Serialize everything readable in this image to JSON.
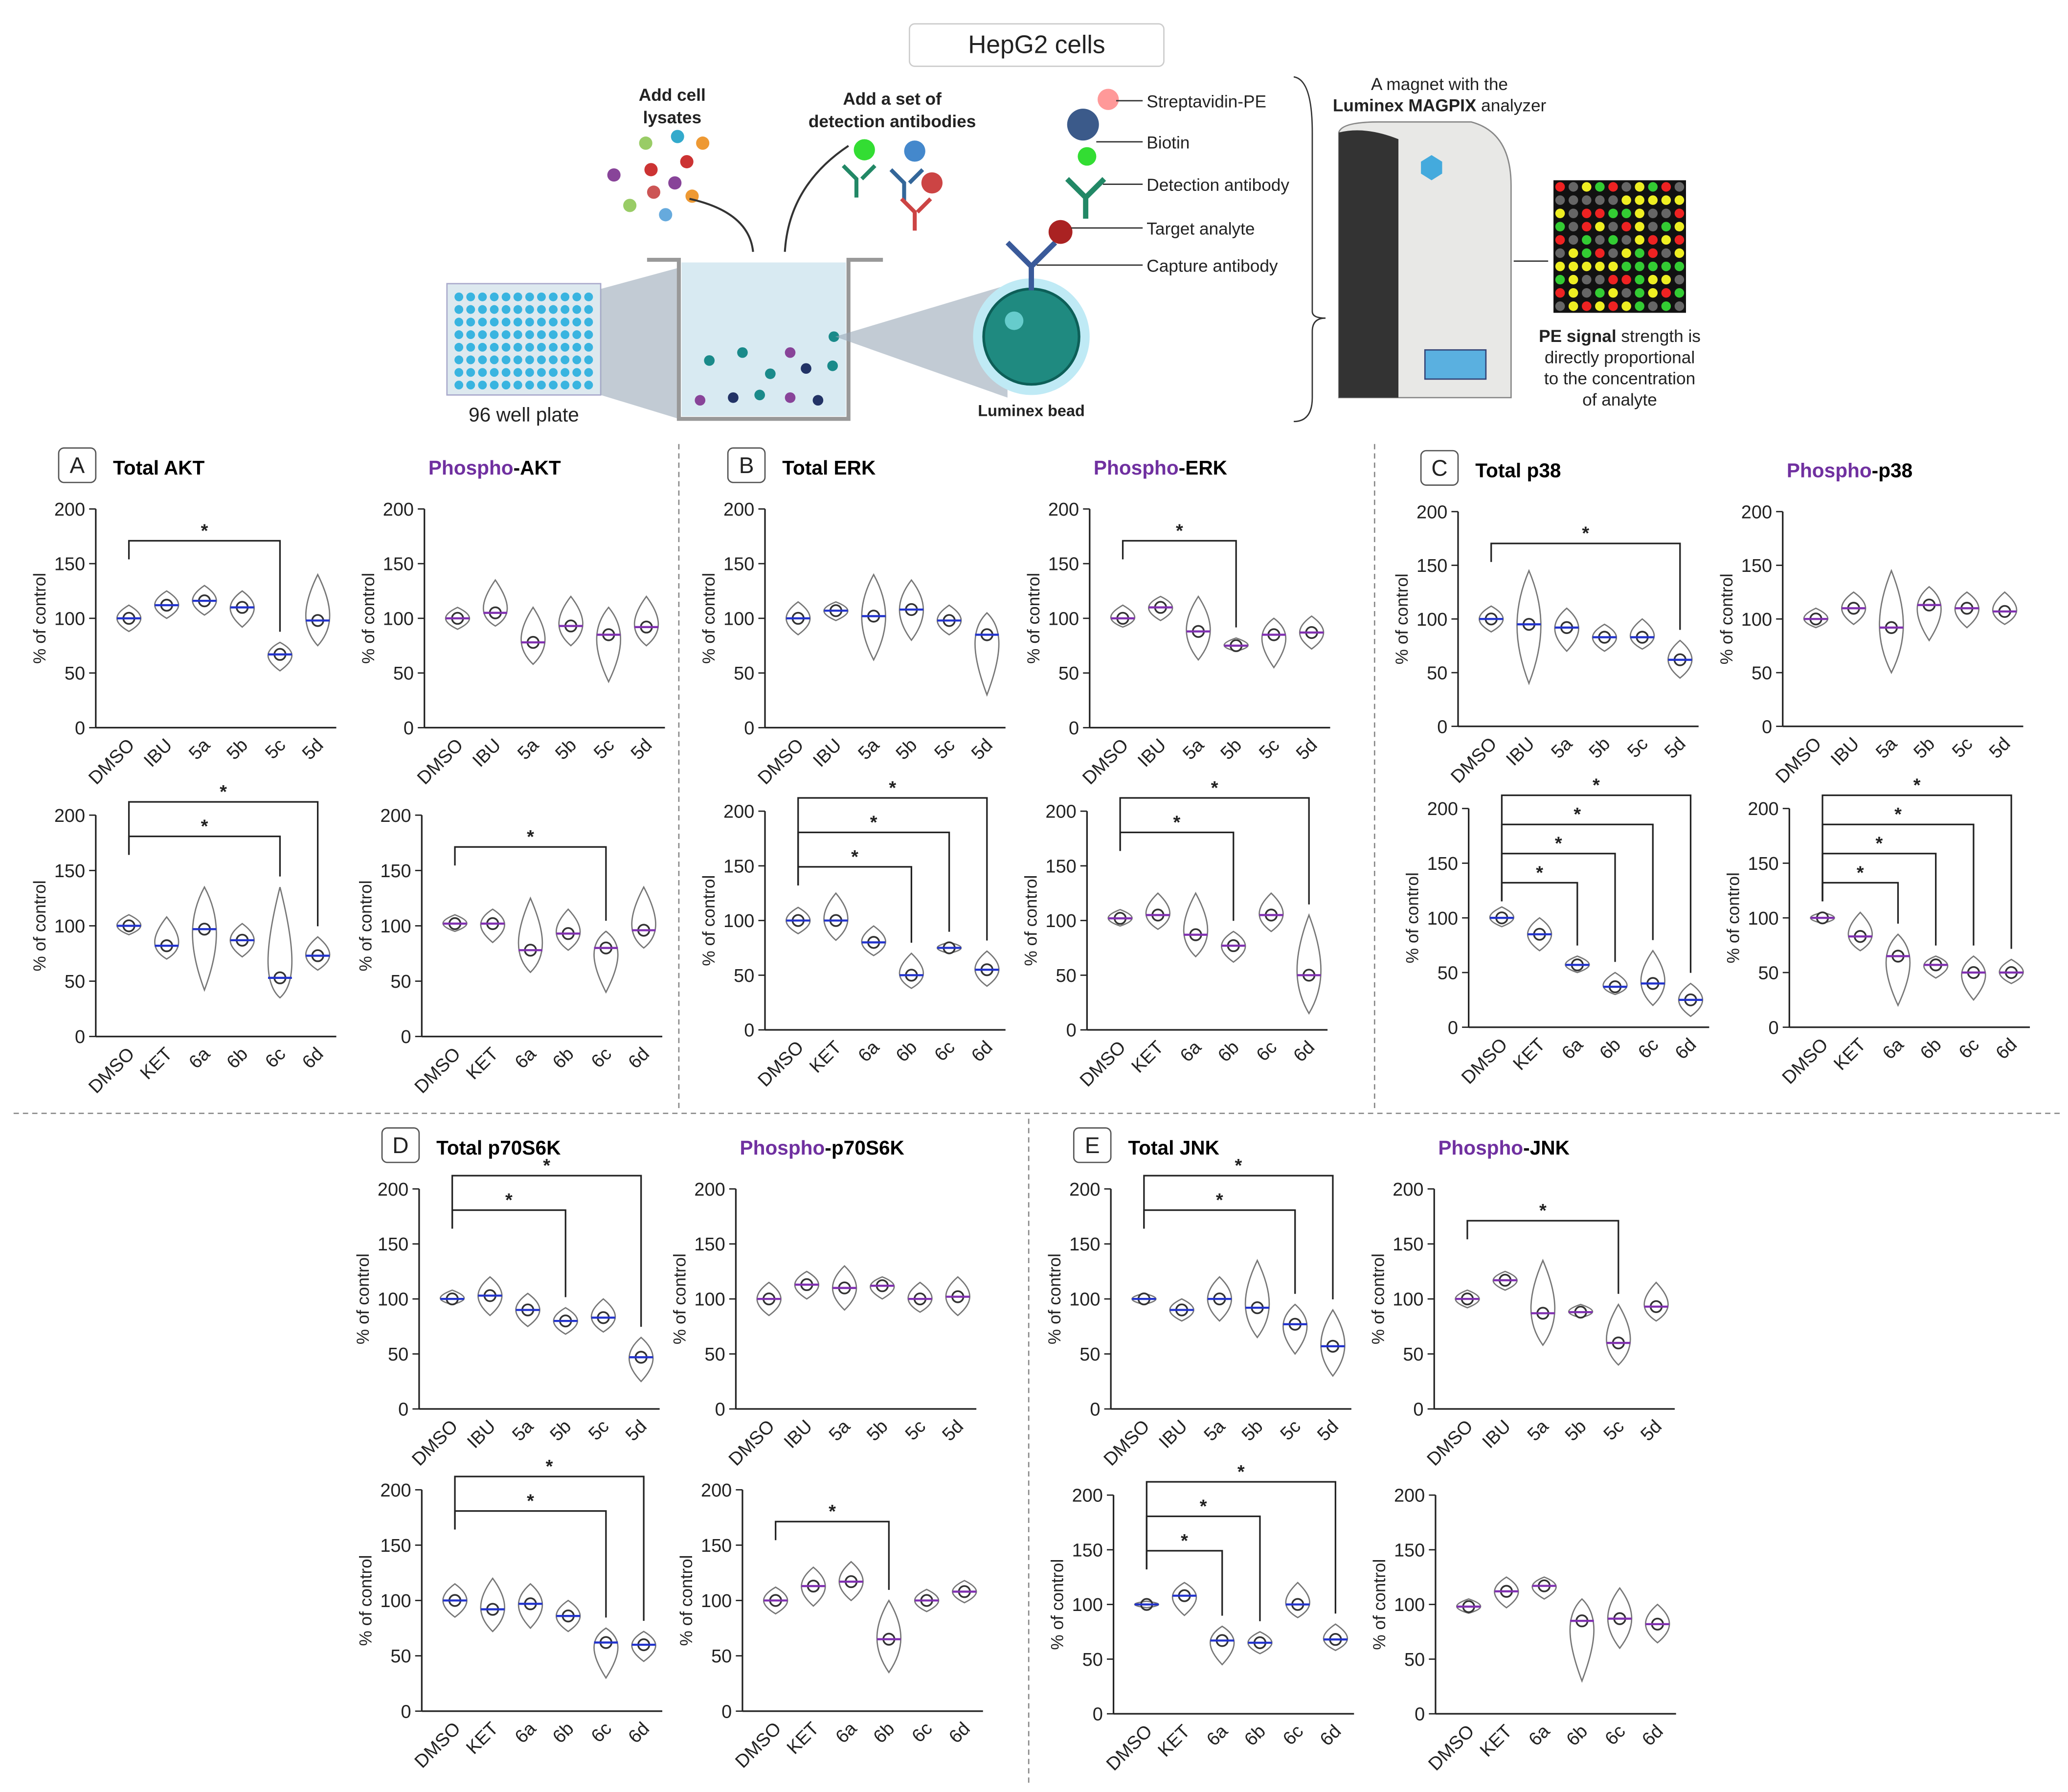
{
  "diagram": {
    "header": "HepG2 cells",
    "add_lysates": [
      "Add cell",
      "lysates"
    ],
    "add_antibodies": [
      "Add a set of",
      "detection antibodies"
    ],
    "streptavidin": "Streptavidin-PE",
    "biotin": "Biotin",
    "detection": "Detection antibody",
    "target": "Target analyte",
    "capture": "Capture antibody",
    "magnet": [
      [
        "A magnet with the"
      ],
      [
        "Luminex MAGPIX",
        " analyzer"
      ]
    ],
    "plate": "96 well plate",
    "bead": "Luminex bead",
    "signal": [
      [
        "PE signal",
        " strength is"
      ],
      [
        "directly proportional"
      ],
      [
        "to the concentration"
      ],
      [
        "of analyte"
      ]
    ]
  },
  "chart_data": [
    {
      "type": "violin",
      "panel": "A",
      "title_parts": [
        "Total AKT"
      ],
      "title_colors": [
        "#000000"
      ],
      "ylabel": "% of control",
      "categories": [
        "DMSO",
        "IBU",
        "5a",
        "5b",
        "5c",
        "5d"
      ],
      "values": [
        100,
        112,
        116,
        110,
        67,
        98
      ],
      "low": [
        88,
        100,
        103,
        92,
        52,
        75
      ],
      "high": [
        112,
        125,
        130,
        125,
        78,
        140
      ],
      "median_color": "#2233cc",
      "ylim": [
        0,
        200
      ],
      "yticks": [
        0,
        50,
        100,
        150,
        200
      ],
      "significance": [
        {
          "from": 0,
          "to": 4,
          "label": "*"
        }
      ]
    },
    {
      "type": "violin",
      "title_parts": [
        "Phospho",
        "-AKT"
      ],
      "title_colors": [
        "#7030a0",
        "#000000"
      ],
      "ylabel": "% of control",
      "categories": [
        "DMSO",
        "IBU",
        "5a",
        "5b",
        "5c",
        "5d"
      ],
      "values": [
        100,
        105,
        78,
        93,
        85,
        92
      ],
      "low": [
        90,
        93,
        58,
        75,
        42,
        75
      ],
      "high": [
        110,
        135,
        110,
        120,
        110,
        120
      ],
      "median_color": "#8030b0",
      "ylim": [
        0,
        200
      ],
      "yticks": [
        0,
        50,
        100,
        150,
        200
      ],
      "significance": []
    },
    {
      "type": "violin",
      "panel": "B",
      "title_parts": [
        "Total ERK"
      ],
      "title_colors": [
        "#000000"
      ],
      "ylabel": "% of control",
      "categories": [
        "DMSO",
        "IBU",
        "5a",
        "5b",
        "5c",
        "5d"
      ],
      "values": [
        100,
        107,
        102,
        108,
        98,
        85
      ],
      "low": [
        85,
        98,
        62,
        80,
        85,
        30
      ],
      "high": [
        115,
        115,
        140,
        135,
        112,
        105
      ],
      "median_color": "#2233cc",
      "ylim": [
        0,
        200
      ],
      "yticks": [
        0,
        50,
        100,
        150,
        200
      ],
      "significance": []
    },
    {
      "type": "violin",
      "title_parts": [
        "Phospho",
        "-ERK"
      ],
      "title_colors": [
        "#7030a0",
        "#000000"
      ],
      "ylabel": "% of control",
      "categories": [
        "DMSO",
        "IBU",
        "5a",
        "5b",
        "5c",
        "5d"
      ],
      "values": [
        100,
        110,
        88,
        75,
        85,
        87
      ],
      "low": [
        92,
        98,
        62,
        70,
        55,
        72
      ],
      "high": [
        112,
        120,
        120,
        82,
        100,
        102
      ],
      "median_color": "#8030b0",
      "ylim": [
        0,
        200
      ],
      "yticks": [
        0,
        50,
        100,
        150,
        200
      ],
      "significance": [
        {
          "from": 0,
          "to": 3,
          "label": "*"
        }
      ]
    },
    {
      "type": "violin",
      "panel": "C",
      "title_parts": [
        "Total p38"
      ],
      "title_colors": [
        "#000000"
      ],
      "ylabel": "% of control",
      "categories": [
        "DMSO",
        "IBU",
        "5a",
        "5b",
        "5c",
        "5d"
      ],
      "values": [
        100,
        95,
        92,
        83,
        83,
        62
      ],
      "low": [
        88,
        40,
        70,
        70,
        72,
        45
      ],
      "high": [
        112,
        145,
        110,
        95,
        100,
        80
      ],
      "median_color": "#2233cc",
      "ylim": [
        0,
        200
      ],
      "yticks": [
        0,
        50,
        100,
        150,
        200
      ],
      "significance": [
        {
          "from": 0,
          "to": 5,
          "label": "*"
        }
      ]
    },
    {
      "type": "violin",
      "title_parts": [
        "Phospho",
        "-p38"
      ],
      "title_colors": [
        "#7030a0",
        "#000000"
      ],
      "ylabel": "% of control",
      "categories": [
        "DMSO",
        "IBU",
        "5a",
        "5b",
        "5c",
        "5d"
      ],
      "values": [
        100,
        110,
        92,
        113,
        110,
        107
      ],
      "low": [
        92,
        95,
        50,
        80,
        92,
        95
      ],
      "high": [
        110,
        125,
        145,
        130,
        125,
        125
      ],
      "median_color": "#8030b0",
      "ylim": [
        0,
        200
      ],
      "yticks": [
        0,
        50,
        100,
        150,
        200
      ],
      "significance": []
    },
    {
      "type": "violin",
      "ylabel": "% of control",
      "categories": [
        "DMSO",
        "KET",
        "6a",
        "6b",
        "6c",
        "6d"
      ],
      "values": [
        100,
        82,
        97,
        87,
        53,
        73
      ],
      "low": [
        92,
        70,
        42,
        72,
        35,
        60
      ],
      "high": [
        110,
        108,
        135,
        102,
        135,
        90
      ],
      "median_color": "#2233cc",
      "ylim": [
        0,
        200
      ],
      "yticks": [
        0,
        50,
        100,
        150,
        200
      ],
      "significance": [
        {
          "from": 0,
          "to": 4,
          "label": "*"
        },
        {
          "from": 0,
          "to": 5,
          "label": "*"
        }
      ]
    },
    {
      "type": "violin",
      "ylabel": "% of control",
      "categories": [
        "DMSO",
        "KET",
        "6a",
        "6b",
        "6c",
        "6d"
      ],
      "values": [
        102,
        102,
        78,
        93,
        80,
        96
      ],
      "low": [
        95,
        85,
        58,
        78,
        40,
        80
      ],
      "high": [
        110,
        115,
        125,
        115,
        95,
        135
      ],
      "median_color": "#8030b0",
      "ylim": [
        0,
        200
      ],
      "yticks": [
        0,
        50,
        100,
        150,
        200
      ],
      "significance": [
        {
          "from": 0,
          "to": 4,
          "label": "*"
        }
      ]
    },
    {
      "type": "violin",
      "ylabel": "% of control",
      "categories": [
        "DMSO",
        "KET",
        "6a",
        "6b",
        "6c",
        "6d"
      ],
      "values": [
        100,
        100,
        80,
        50,
        75,
        55
      ],
      "low": [
        88,
        82,
        68,
        38,
        70,
        40
      ],
      "high": [
        112,
        125,
        95,
        70,
        80,
        72
      ],
      "median_color": "#2233cc",
      "ylim": [
        0,
        200
      ],
      "yticks": [
        0,
        50,
        100,
        150,
        200
      ],
      "significance": [
        {
          "from": 0,
          "to": 3,
          "label": "*"
        },
        {
          "from": 0,
          "to": 4,
          "label": "*"
        },
        {
          "from": 0,
          "to": 5,
          "label": "*"
        }
      ]
    },
    {
      "type": "violin",
      "ylabel": "% of control",
      "categories": [
        "DMSO",
        "KET",
        "6a",
        "6b",
        "6c",
        "6d"
      ],
      "values": [
        102,
        105,
        87,
        77,
        105,
        50
      ],
      "low": [
        95,
        92,
        67,
        62,
        90,
        15
      ],
      "high": [
        110,
        125,
        125,
        90,
        125,
        105
      ],
      "median_color": "#8030b0",
      "ylim": [
        0,
        200
      ],
      "yticks": [
        0,
        50,
        100,
        150,
        200
      ],
      "significance": [
        {
          "from": 0,
          "to": 3,
          "label": "*"
        },
        {
          "from": 0,
          "to": 5,
          "label": "*"
        }
      ]
    },
    {
      "type": "violin",
      "ylabel": "% of control",
      "categories": [
        "DMSO",
        "KET",
        "6a",
        "6b",
        "6c",
        "6d"
      ],
      "values": [
        100,
        85,
        57,
        37,
        40,
        25
      ],
      "low": [
        92,
        70,
        50,
        30,
        20,
        10
      ],
      "high": [
        110,
        100,
        65,
        50,
        70,
        40
      ],
      "median_color": "#2233cc",
      "ylim": [
        0,
        200
      ],
      "yticks": [
        0,
        50,
        100,
        150,
        200
      ],
      "significance": [
        {
          "from": 0,
          "to": 2,
          "label": "*"
        },
        {
          "from": 0,
          "to": 3,
          "label": "*"
        },
        {
          "from": 0,
          "to": 4,
          "label": "*"
        },
        {
          "from": 0,
          "to": 5,
          "label": "*"
        }
      ]
    },
    {
      "type": "violin",
      "ylabel": "% of control",
      "categories": [
        "DMSO",
        "KET",
        "6a",
        "6b",
        "6c",
        "6d"
      ],
      "values": [
        100,
        83,
        65,
        57,
        50,
        50
      ],
      "low": [
        95,
        70,
        20,
        45,
        25,
        40
      ],
      "high": [
        105,
        105,
        85,
        65,
        65,
        62
      ],
      "median_color": "#8030b0",
      "ylim": [
        0,
        200
      ],
      "yticks": [
        0,
        50,
        100,
        150,
        200
      ],
      "significance": [
        {
          "from": 0,
          "to": 2,
          "label": "*"
        },
        {
          "from": 0,
          "to": 3,
          "label": "*"
        },
        {
          "from": 0,
          "to": 4,
          "label": "*"
        },
        {
          "from": 0,
          "to": 5,
          "label": "*"
        }
      ]
    },
    {
      "type": "violin",
      "panel": "D",
      "title_parts": [
        "Total p70S6K"
      ],
      "title_colors": [
        "#000000"
      ],
      "ylabel": "% of control",
      "categories": [
        "DMSO",
        "IBU",
        "5a",
        "5b",
        "5c",
        "5d"
      ],
      "values": [
        100,
        103,
        90,
        80,
        83,
        47
      ],
      "low": [
        95,
        85,
        75,
        68,
        70,
        25
      ],
      "high": [
        108,
        120,
        105,
        92,
        100,
        65
      ],
      "median_color": "#2233cc",
      "ylim": [
        0,
        200
      ],
      "yticks": [
        0,
        50,
        100,
        150,
        200
      ],
      "significance": [
        {
          "from": 0,
          "to": 3,
          "label": "*"
        },
        {
          "from": 0,
          "to": 5,
          "label": "*"
        }
      ]
    },
    {
      "type": "violin",
      "title_parts": [
        "Phospho",
        "-p70S6K"
      ],
      "title_colors": [
        "#7030a0",
        "#000000"
      ],
      "ylabel": "% of control",
      "categories": [
        "DMSO",
        "IBU",
        "5a",
        "5b",
        "5c",
        "5d"
      ],
      "values": [
        100,
        113,
        110,
        112,
        100,
        102
      ],
      "low": [
        85,
        100,
        90,
        100,
        88,
        85
      ],
      "high": [
        115,
        125,
        130,
        120,
        115,
        120
      ],
      "median_color": "#8030b0",
      "ylim": [
        0,
        200
      ],
      "yticks": [
        0,
        50,
        100,
        150,
        200
      ],
      "significance": []
    },
    {
      "type": "violin",
      "panel": "E",
      "title_parts": [
        "Total JNK"
      ],
      "title_colors": [
        "#000000"
      ],
      "ylabel": "% of control",
      "categories": [
        "DMSO",
        "IBU",
        "5a",
        "5b",
        "5c",
        "5d"
      ],
      "values": [
        100,
        90,
        100,
        92,
        77,
        57
      ],
      "low": [
        95,
        80,
        80,
        65,
        50,
        30
      ],
      "high": [
        105,
        100,
        120,
        135,
        95,
        90
      ],
      "median_color": "#2233cc",
      "ylim": [
        0,
        200
      ],
      "yticks": [
        0,
        50,
        100,
        150,
        200
      ],
      "significance": [
        {
          "from": 0,
          "to": 4,
          "label": "*"
        },
        {
          "from": 0,
          "to": 5,
          "label": "*"
        }
      ]
    },
    {
      "type": "violin",
      "title_parts": [
        "Phospho",
        "-JNK"
      ],
      "title_colors": [
        "#7030a0",
        "#000000"
      ],
      "ylabel": "% of control",
      "categories": [
        "DMSO",
        "IBU",
        "5a",
        "5b",
        "5c",
        "5d"
      ],
      "values": [
        100,
        117,
        87,
        88,
        60,
        93
      ],
      "low": [
        92,
        108,
        58,
        83,
        40,
        80
      ],
      "high": [
        108,
        125,
        135,
        95,
        95,
        115
      ],
      "median_color": "#8030b0",
      "ylim": [
        0,
        200
      ],
      "yticks": [
        0,
        50,
        100,
        150,
        200
      ],
      "significance": [
        {
          "from": 0,
          "to": 4,
          "label": "*"
        }
      ]
    },
    {
      "type": "violin",
      "ylabel": "% of control",
      "categories": [
        "DMSO",
        "KET",
        "6a",
        "6b",
        "6c",
        "6d"
      ],
      "values": [
        100,
        92,
        97,
        86,
        62,
        60
      ],
      "low": [
        85,
        72,
        75,
        72,
        30,
        45
      ],
      "high": [
        115,
        120,
        115,
        100,
        75,
        72
      ],
      "median_color": "#2233cc",
      "ylim": [
        0,
        200
      ],
      "yticks": [
        0,
        50,
        100,
        150,
        200
      ],
      "significance": [
        {
          "from": 0,
          "to": 4,
          "label": "*"
        },
        {
          "from": 0,
          "to": 5,
          "label": "*"
        }
      ]
    },
    {
      "type": "violin",
      "ylabel": "% of control",
      "categories": [
        "DMSO",
        "KET",
        "6a",
        "6b",
        "6c",
        "6d"
      ],
      "values": [
        100,
        113,
        117,
        65,
        100,
        108
      ],
      "low": [
        88,
        95,
        100,
        35,
        90,
        98
      ],
      "high": [
        112,
        130,
        135,
        100,
        110,
        118
      ],
      "median_color": "#8030b0",
      "ylim": [
        0,
        200
      ],
      "yticks": [
        0,
        50,
        100,
        150,
        200
      ],
      "significance": [
        {
          "from": 0,
          "to": 3,
          "label": "*"
        }
      ]
    },
    {
      "type": "violin",
      "ylabel": "% of control",
      "categories": [
        "DMSO",
        "KET",
        "6a",
        "6b",
        "6c",
        "6d"
      ],
      "values": [
        100,
        108,
        67,
        65,
        100,
        68
      ],
      "low": [
        97,
        90,
        45,
        55,
        88,
        58
      ],
      "high": [
        103,
        120,
        80,
        75,
        120,
        82
      ],
      "median_color": "#2233cc",
      "ylim": [
        0,
        200
      ],
      "yticks": [
        0,
        50,
        100,
        150,
        200
      ],
      "significance": [
        {
          "from": 0,
          "to": 2,
          "label": "*"
        },
        {
          "from": 0,
          "to": 3,
          "label": "*"
        },
        {
          "from": 0,
          "to": 5,
          "label": "*"
        }
      ]
    },
    {
      "type": "violin",
      "ylabel": "% of control",
      "categories": [
        "DMSO",
        "KET",
        "6a",
        "6b",
        "6c",
        "6d"
      ],
      "values": [
        98,
        112,
        117,
        85,
        87,
        82
      ],
      "low": [
        92,
        97,
        105,
        30,
        60,
        65
      ],
      "high": [
        105,
        125,
        125,
        105,
        115,
        100
      ],
      "median_color": "#8030b0",
      "ylim": [
        0,
        200
      ],
      "yticks": [
        0,
        50,
        100,
        150,
        200
      ],
      "significance": []
    }
  ]
}
